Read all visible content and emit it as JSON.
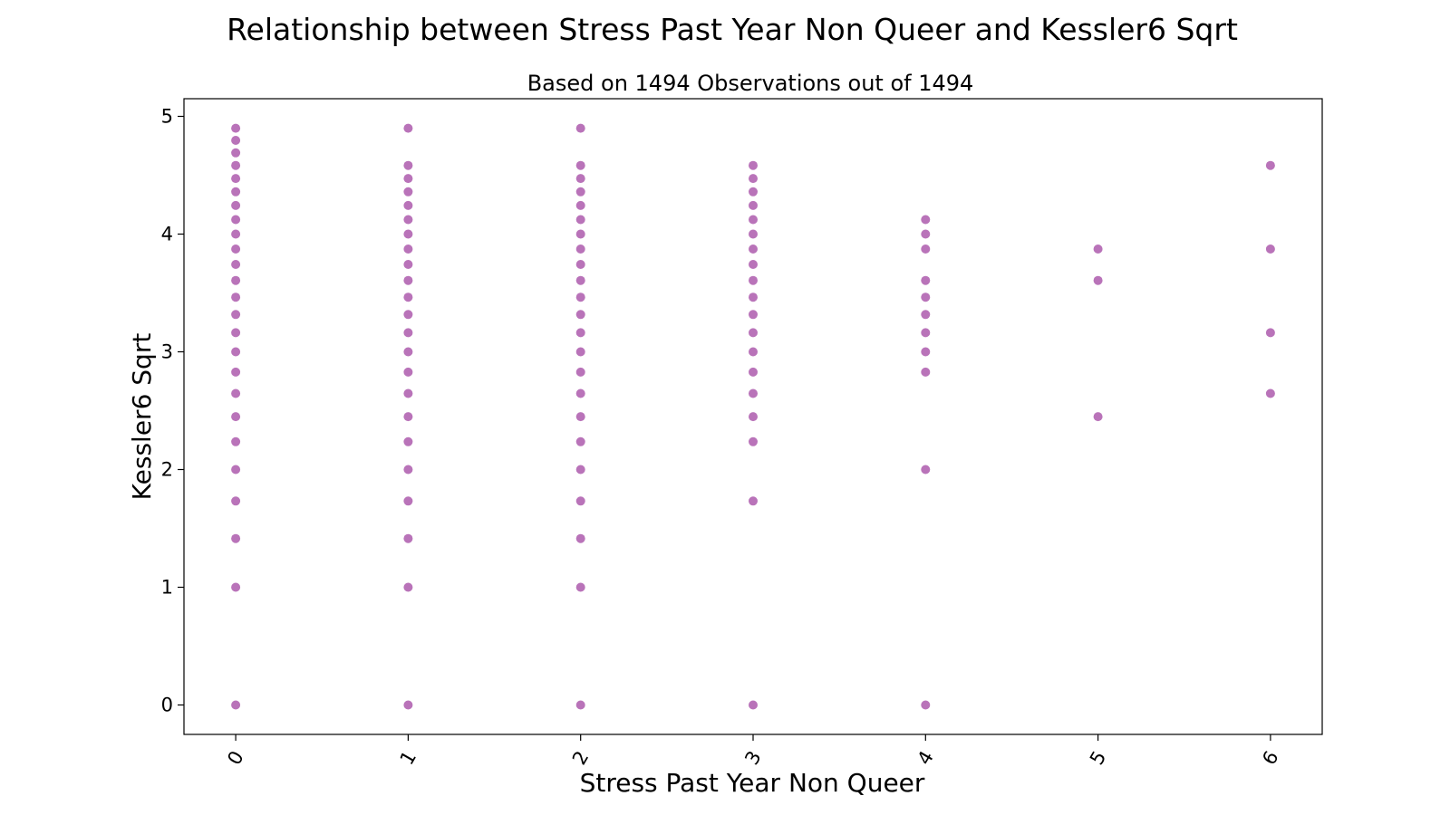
{
  "chart_data": {
    "type": "scatter",
    "title": "Relationship between Stress Past Year Non Queer and Kessler6 Sqrt",
    "subtitle": "Based on 1494 Observations out of 1494",
    "xlabel": "Stress Past Year Non Queer",
    "ylabel": "Kessler6 Sqrt",
    "xlim": [
      -0.3,
      6.3
    ],
    "ylim": [
      -0.25,
      5.15
    ],
    "xticks": [
      0,
      1,
      2,
      3,
      4,
      5,
      6
    ],
    "yticks": [
      0,
      1,
      2,
      3,
      4,
      5
    ],
    "grid": false,
    "marker_color": "#800080",
    "points": [
      {
        "x": 0,
        "y": [
          0,
          1,
          1.414,
          1.732,
          2,
          2.236,
          2.449,
          2.646,
          2.828,
          3,
          3.162,
          3.317,
          3.464,
          3.606,
          3.742,
          3.873,
          4,
          4.123,
          4.243,
          4.359,
          4.472,
          4.583,
          4.69,
          4.796,
          4.899
        ]
      },
      {
        "x": 1,
        "y": [
          0,
          1,
          1.414,
          1.732,
          2,
          2.236,
          2.449,
          2.646,
          2.828,
          3,
          3.162,
          3.317,
          3.464,
          3.606,
          3.742,
          3.873,
          4,
          4.123,
          4.243,
          4.359,
          4.472,
          4.583,
          4.899
        ]
      },
      {
        "x": 2,
        "y": [
          0,
          1,
          1.414,
          1.732,
          2,
          2.236,
          2.449,
          2.646,
          2.828,
          3,
          3.162,
          3.317,
          3.464,
          3.606,
          3.742,
          3.873,
          4,
          4.123,
          4.243,
          4.359,
          4.472,
          4.583,
          4.899
        ]
      },
      {
        "x": 3,
        "y": [
          0,
          1.732,
          2.236,
          2.449,
          2.646,
          2.828,
          3,
          3.162,
          3.317,
          3.464,
          3.606,
          3.742,
          3.873,
          4,
          4.123,
          4.243,
          4.359,
          4.472,
          4.583
        ]
      },
      {
        "x": 4,
        "y": [
          0,
          2,
          2.828,
          3,
          3.162,
          3.317,
          3.464,
          3.606,
          3.873,
          4,
          4.123
        ]
      },
      {
        "x": 5,
        "y": [
          2.449,
          3.606,
          3.873
        ]
      },
      {
        "x": 6,
        "y": [
          2.646,
          3.162,
          3.873,
          4.583
        ]
      }
    ]
  }
}
